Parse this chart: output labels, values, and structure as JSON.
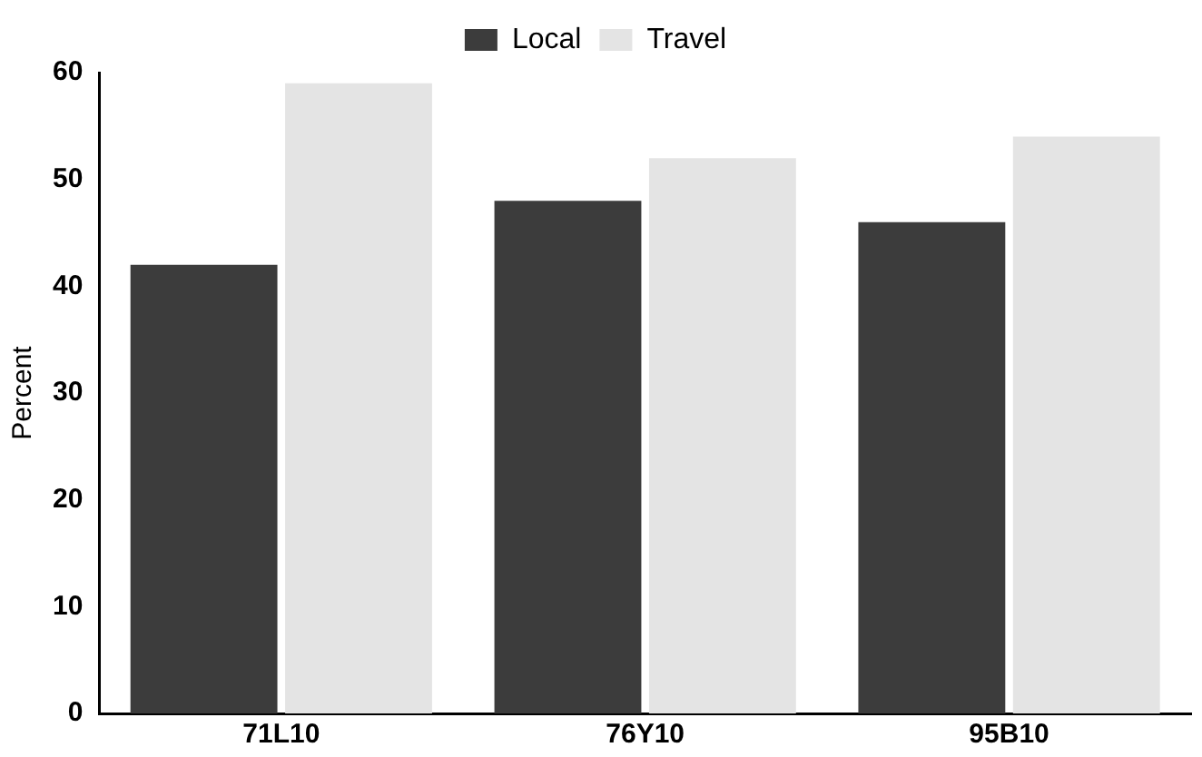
{
  "chart_data": {
    "type": "bar",
    "ylabel": "Percent",
    "categories": [
      "71L10",
      "76Y10",
      "95B10"
    ],
    "series": [
      {
        "name": "Local",
        "color": "#3c3c3c",
        "values": [
          42,
          48,
          46
        ]
      },
      {
        "name": "Travel",
        "color": "#e4e4e4",
        "values": [
          59,
          52,
          54
        ]
      }
    ],
    "ylim": [
      0,
      60
    ],
    "yticks": [
      0,
      10,
      20,
      30,
      40,
      50,
      60
    ],
    "grid": false,
    "legend": "top"
  }
}
